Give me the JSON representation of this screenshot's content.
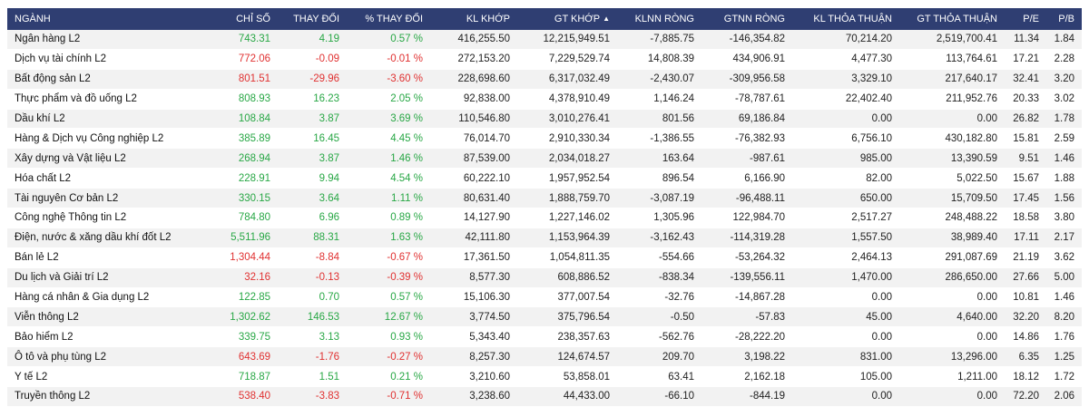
{
  "colors": {
    "header_bg": "#2f3e72",
    "up": "#28a745",
    "down": "#e03131"
  },
  "table": {
    "headers": [
      "NGÀNH",
      "CHỈ SỐ",
      "THAY ĐỔI",
      "% THAY ĐỔI",
      "KL KHỚP",
      "GT KHỚP",
      "KLNN RÒNG",
      "GTNN RÒNG",
      "KL THỎA THUẬN",
      "GT THỎA THUẬN",
      "P/E",
      "P/B"
    ],
    "sort_icon": "sort-arrows-icon",
    "rows": [
      {
        "dir": "up",
        "cells": [
          "Ngân hàng L2",
          "743.31",
          "4.19",
          "0.57 %",
          "416,255.50",
          "12,215,949.51",
          "-7,885.75",
          "-146,354.82",
          "70,214.20",
          "2,519,700.41",
          "11.34",
          "1.84"
        ]
      },
      {
        "dir": "down",
        "cells": [
          "Dịch vụ tài chính L2",
          "772.06",
          "-0.09",
          "-0.01 %",
          "272,153.20",
          "7,229,529.74",
          "14,808.39",
          "434,906.91",
          "4,477.30",
          "113,764.61",
          "17.21",
          "2.28"
        ]
      },
      {
        "dir": "down",
        "cells": [
          "Bất động sản L2",
          "801.51",
          "-29.96",
          "-3.60 %",
          "228,698.60",
          "6,317,032.49",
          "-2,430.07",
          "-309,956.58",
          "3,329.10",
          "217,640.17",
          "32.41",
          "3.20"
        ]
      },
      {
        "dir": "up",
        "cells": [
          "Thực phẩm và đồ uống L2",
          "808.93",
          "16.23",
          "2.05 %",
          "92,838.00",
          "4,378,910.49",
          "1,146.24",
          "-78,787.61",
          "22,402.40",
          "211,952.76",
          "20.33",
          "3.02"
        ]
      },
      {
        "dir": "up",
        "cells": [
          "Dầu khí L2",
          "108.84",
          "3.87",
          "3.69 %",
          "110,546.80",
          "3,010,276.41",
          "801.56",
          "69,186.84",
          "0.00",
          "0.00",
          "26.82",
          "1.78"
        ]
      },
      {
        "dir": "up",
        "cells": [
          "Hàng & Dịch vụ Công nghiệp L2",
          "385.89",
          "16.45",
          "4.45 %",
          "76,014.70",
          "2,910,330.34",
          "-1,386.55",
          "-76,382.93",
          "6,756.10",
          "430,182.80",
          "15.81",
          "2.59"
        ]
      },
      {
        "dir": "up",
        "cells": [
          "Xây dựng và Vật liệu L2",
          "268.94",
          "3.87",
          "1.46 %",
          "87,539.00",
          "2,034,018.27",
          "163.64",
          "-987.61",
          "985.00",
          "13,390.59",
          "9.51",
          "1.46"
        ]
      },
      {
        "dir": "up",
        "cells": [
          "Hóa chất L2",
          "228.91",
          "9.94",
          "4.54 %",
          "60,222.10",
          "1,957,952.54",
          "896.54",
          "6,166.90",
          "82.00",
          "5,022.50",
          "15.67",
          "1.88"
        ]
      },
      {
        "dir": "up",
        "cells": [
          "Tài nguyên Cơ bản L2",
          "330.15",
          "3.64",
          "1.11 %",
          "80,631.40",
          "1,888,759.70",
          "-3,087.19",
          "-96,488.11",
          "650.00",
          "15,709.50",
          "17.45",
          "1.56"
        ]
      },
      {
        "dir": "up",
        "cells": [
          "Công nghệ Thông tin L2",
          "784.80",
          "6.96",
          "0.89 %",
          "14,127.90",
          "1,227,146.02",
          "1,305.96",
          "122,984.70",
          "2,517.27",
          "248,488.22",
          "18.58",
          "3.80"
        ]
      },
      {
        "dir": "up",
        "cells": [
          "Điện, nước & xăng dầu khí đốt L2",
          "5,511.96",
          "88.31",
          "1.63 %",
          "42,111.80",
          "1,153,964.39",
          "-3,162.43",
          "-114,319.28",
          "1,557.50",
          "38,989.40",
          "17.11",
          "2.17"
        ]
      },
      {
        "dir": "down",
        "cells": [
          "Bán lẻ L2",
          "1,304.44",
          "-8.84",
          "-0.67 %",
          "17,361.50",
          "1,054,811.35",
          "-554.66",
          "-53,264.32",
          "2,464.13",
          "291,087.69",
          "21.19",
          "3.62"
        ]
      },
      {
        "dir": "down",
        "cells": [
          "Du lịch và Giải trí L2",
          "32.16",
          "-0.13",
          "-0.39 %",
          "8,577.30",
          "608,886.52",
          "-838.34",
          "-139,556.11",
          "1,470.00",
          "286,650.00",
          "27.66",
          "5.00"
        ]
      },
      {
        "dir": "up",
        "cells": [
          "Hàng cá nhân & Gia dụng L2",
          "122.85",
          "0.70",
          "0.57 %",
          "15,106.30",
          "377,007.54",
          "-32.76",
          "-14,867.28",
          "0.00",
          "0.00",
          "10.81",
          "1.46"
        ]
      },
      {
        "dir": "up",
        "cells": [
          "Viễn thông L2",
          "1,302.62",
          "146.53",
          "12.67 %",
          "3,774.50",
          "375,796.54",
          "-0.50",
          "-57.83",
          "45.00",
          "4,640.00",
          "32.20",
          "8.20"
        ]
      },
      {
        "dir": "up",
        "cells": [
          "Bảo hiểm L2",
          "339.75",
          "3.13",
          "0.93 %",
          "5,343.40",
          "238,357.63",
          "-562.76",
          "-28,222.20",
          "0.00",
          "0.00",
          "14.86",
          "1.76"
        ]
      },
      {
        "dir": "down",
        "cells": [
          "Ô tô và phụ tùng L2",
          "643.69",
          "-1.76",
          "-0.27 %",
          "8,257.30",
          "124,674.57",
          "209.70",
          "3,198.22",
          "831.00",
          "13,296.00",
          "6.35",
          "1.25"
        ]
      },
      {
        "dir": "up",
        "cells": [
          "Y tế L2",
          "718.87",
          "1.51",
          "0.21 %",
          "3,210.60",
          "53,858.01",
          "63.41",
          "2,162.18",
          "105.00",
          "1,211.00",
          "18.12",
          "1.72"
        ]
      },
      {
        "dir": "down",
        "cells": [
          "Truyền thông L2",
          "538.40",
          "-3.83",
          "-0.71 %",
          "3,238.60",
          "44,433.00",
          "-66.10",
          "-844.19",
          "0.00",
          "0.00",
          "72.20",
          "2.06"
        ]
      }
    ]
  }
}
